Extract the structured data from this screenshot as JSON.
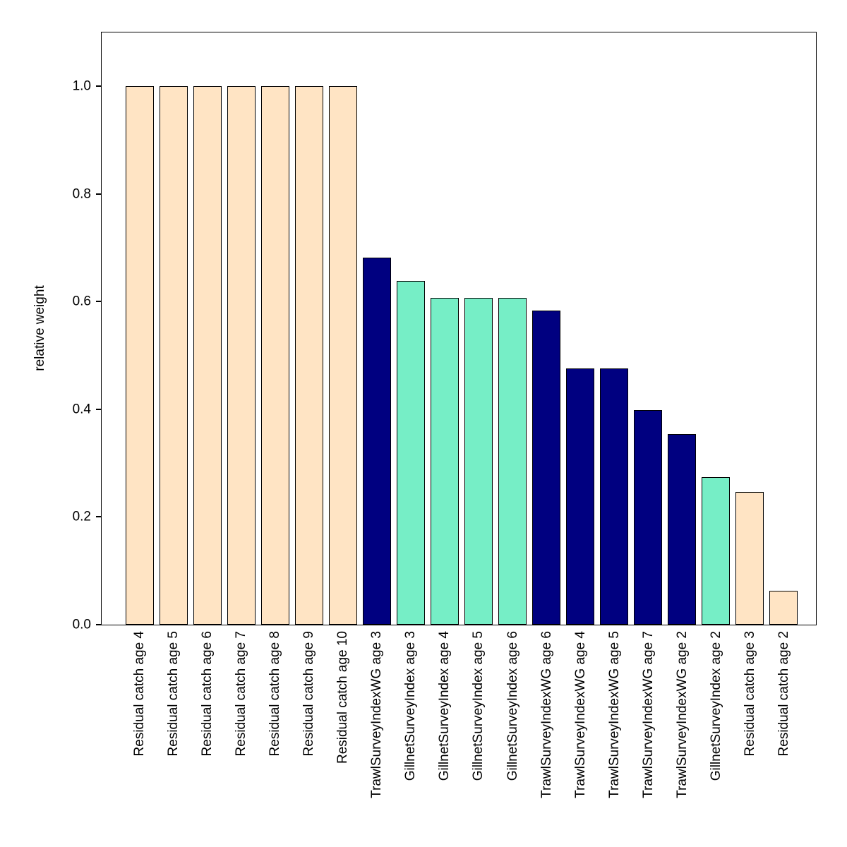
{
  "chart_data": {
    "type": "bar",
    "title": "",
    "xlabel": "",
    "ylabel": "relative weight",
    "ylim": [
      0,
      1.1
    ],
    "yticks": [
      0,
      0.2,
      0.4,
      0.6,
      0.8,
      1.0
    ],
    "grid": false,
    "legend_position": "none",
    "categories": [
      "Residual catch age 4",
      "Residual catch age 5",
      "Residual catch age 6",
      "Residual catch age 7",
      "Residual catch age 8",
      "Residual catch age 9",
      "Residual catch age 10",
      "TrawlSurveyIndexWG age 3",
      "GillnetSurveyIndex age 3",
      "GillnetSurveyIndex age 4",
      "GillnetSurveyIndex age 5",
      "GillnetSurveyIndex age 6",
      "TrawlSurveyIndexWG age 6",
      "TrawlSurveyIndexWG age 4",
      "TrawlSurveyIndexWG age 5",
      "TrawlSurveyIndexWG age 7",
      "TrawlSurveyIndexWG age 2",
      "GillnetSurveyIndex age 2",
      "Residual catch age 3",
      "Residual catch age 2"
    ],
    "values": [
      1.0,
      1.0,
      1.0,
      1.0,
      1.0,
      1.0,
      1.0,
      0.682,
      0.638,
      0.607,
      0.607,
      0.607,
      0.583,
      0.476,
      0.476,
      0.399,
      0.354,
      0.274,
      0.246,
      0.063
    ],
    "colors": [
      "#FFE4C4",
      "#FFE4C4",
      "#FFE4C4",
      "#FFE4C4",
      "#FFE4C4",
      "#FFE4C4",
      "#FFE4C4",
      "#000080",
      "#76EEC6",
      "#76EEC6",
      "#76EEC6",
      "#76EEC6",
      "#000080",
      "#000080",
      "#000080",
      "#000080",
      "#000080",
      "#76EEC6",
      "#FFE4C4",
      "#FFE4C4"
    ],
    "color_groups": {
      "Residual catch": "#FFE4C4",
      "TrawlSurveyIndexWG": "#000080",
      "GillnetSurveyIndex": "#76EEC6"
    }
  }
}
